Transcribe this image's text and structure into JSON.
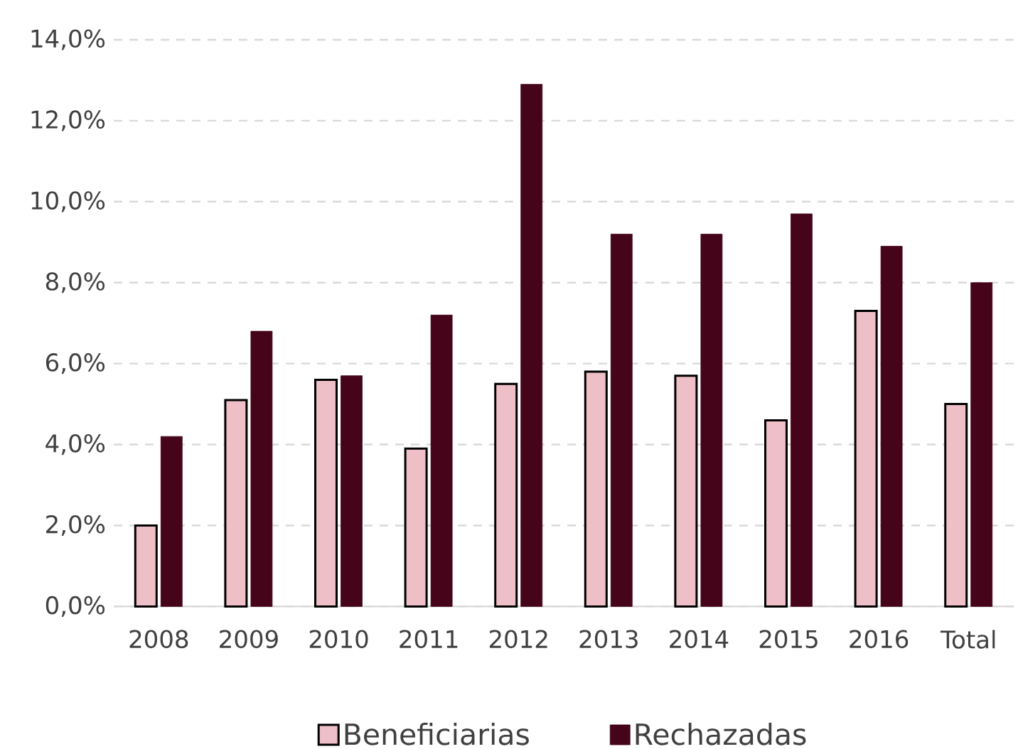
{
  "chart_data": {
    "type": "bar",
    "categories": [
      "2008",
      "2009",
      "2010",
      "2011",
      "2012",
      "2013",
      "2014",
      "2015",
      "2016",
      "Total"
    ],
    "series": [
      {
        "name": "Beneficiarias",
        "color": "#eebfc6",
        "values": [
          2.0,
          5.1,
          5.6,
          3.9,
          5.5,
          5.8,
          5.7,
          4.6,
          7.3,
          5.0
        ]
      },
      {
        "name": "Rechazadas",
        "color": "#45041a",
        "values": [
          4.2,
          6.8,
          5.7,
          7.2,
          12.9,
          9.2,
          9.2,
          9.7,
          8.9,
          8.0
        ]
      }
    ],
    "ylim": [
      0,
      14
    ],
    "yticks": [
      {
        "value": 0,
        "label": "0,0%"
      },
      {
        "value": 2,
        "label": "2,0%"
      },
      {
        "value": 4,
        "label": "4,0%"
      },
      {
        "value": 6,
        "label": "6,0%"
      },
      {
        "value": 8,
        "label": "8,0%"
      },
      {
        "value": 10,
        "label": "10,0%"
      },
      {
        "value": 12,
        "label": "12,0%"
      },
      {
        "value": 14,
        "label": "14,0%"
      }
    ],
    "grid": "y",
    "legend": "bottom"
  }
}
